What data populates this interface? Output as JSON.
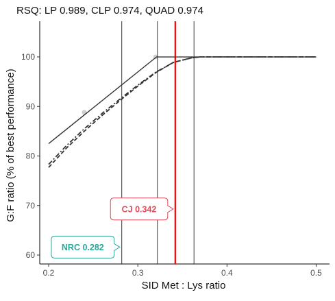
{
  "chart_data": {
    "type": "line",
    "title": "RSQ: LP 0.989, CLP 0.974, QUAD 0.974",
    "xlabel": "SID Met : Lys ratio",
    "ylabel": "G:F ratio (% of best performance)",
    "xlim": [
      0.19,
      0.515
    ],
    "ylim": [
      58.2,
      107.2
    ],
    "xticks": [
      0.2,
      0.3,
      0.4,
      0.5
    ],
    "yticks": [
      60,
      70,
      80,
      90,
      100
    ],
    "xtick_labels": [
      "0.2",
      "0.3",
      "0.4",
      "0.5"
    ],
    "ytick_labels": [
      "60",
      "70",
      "80",
      "90",
      "100"
    ],
    "grid": false,
    "points": [
      {
        "x": 0.24,
        "y": 88.8
      },
      {
        "x": 0.32,
        "y": 100
      }
    ],
    "series": [
      {
        "style": "solid",
        "x": [
          0.2,
          0.321,
          0.5
        ],
        "y": [
          82.5,
          100,
          100
        ]
      },
      {
        "style": "dashed",
        "x": [
          0.2,
          0.22,
          0.24,
          0.26,
          0.28,
          0.3,
          0.32,
          0.34,
          0.36,
          0.37,
          0.5
        ],
        "y": [
          77.7,
          81.6,
          85.0,
          88.2,
          91.2,
          94.1,
          96.8,
          98.9,
          99.8,
          100,
          100
        ]
      },
      {
        "style": "dashdot",
        "x": [
          0.2,
          0.22,
          0.24,
          0.26,
          0.28,
          0.3,
          0.32,
          0.34,
          0.36,
          0.37,
          0.5
        ],
        "y": [
          78.3,
          82.1,
          85.5,
          88.6,
          91.5,
          94.3,
          96.9,
          98.9,
          99.8,
          100,
          100
        ]
      }
    ],
    "vlines": [
      {
        "x": 0.282,
        "color": "#222222"
      },
      {
        "x": 0.322,
        "color": "#222222"
      },
      {
        "x": 0.363,
        "color": "#222222"
      },
      {
        "x": 0.342,
        "color": "#ff0000"
      }
    ],
    "annotations": [
      {
        "text": "CJ 0.342",
        "x": 0.342,
        "y": 69.3,
        "color": "#e04a5a",
        "side": "left"
      },
      {
        "text": "NRC 0.282",
        "x": 0.282,
        "y": 61.6,
        "color": "#2aa89a",
        "side": "left"
      }
    ]
  }
}
